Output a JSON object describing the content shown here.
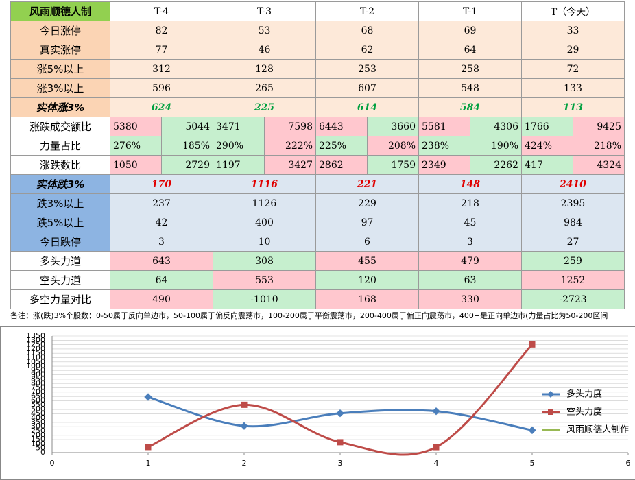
{
  "table": {
    "header": [
      "风雨顺德人制",
      "T-4",
      "T-3",
      "T-2",
      "T-1",
      "T（今天）"
    ],
    "rows": [
      {
        "label": "今日涨停",
        "label_fill": "#fbd4b4",
        "fill": "#fde9d9",
        "cells": [
          82,
          53,
          68,
          69,
          33
        ]
      },
      {
        "label": "真实涨停",
        "label_fill": "#fbd4b4",
        "fill": "#fde9d9",
        "cells": [
          77,
          46,
          62,
          64,
          29
        ]
      },
      {
        "label": "涨5%以上",
        "label_fill": "#fbd4b4",
        "fill": "#fde9d9",
        "cells": [
          312,
          128,
          253,
          258,
          72
        ]
      },
      {
        "label": "涨3%以上",
        "label_fill": "#fbd4b4",
        "fill": "#fde9d9",
        "cells": [
          596,
          265,
          607,
          548,
          133
        ]
      },
      {
        "label": "实体涨3%",
        "label_fill": "#fbd4b4",
        "fill": "#fde9d9",
        "emphasis": "#00a040",
        "cells": [
          624,
          225,
          614,
          584,
          113
        ]
      },
      {
        "label": "涨跌成交额比",
        "label_fill": "#ffffff",
        "cells": [
          5380,
          5044,
          3471,
          7598,
          6443,
          3660,
          5581,
          4306,
          1766,
          9425
        ],
        "fills": [
          "#ffc7ce",
          "#c6efce",
          "#c6efce",
          "#ffc7ce",
          "#ffc7ce",
          "#c6efce",
          "#ffc7ce",
          "#c6efce",
          "#c6efce",
          "#ffc7ce"
        ]
      },
      {
        "label": "力量占比",
        "label_fill": "#ffffff",
        "cells": [
          "276%",
          "185%",
          "290%",
          "222%",
          "225%",
          "208%",
          "238%",
          "190%",
          "424%",
          "218%"
        ],
        "fills": [
          "#c6efce",
          "#c6efce",
          "#c6efce",
          "#ffc7ce",
          "#c6efce",
          "#ffc7ce",
          "#c6efce",
          "#c6efce",
          "#ffc7ce",
          "#ffc7ce"
        ]
      },
      {
        "label": "涨跌数比",
        "label_fill": "#ffffff",
        "cells": [
          1050,
          2729,
          1197,
          3427,
          2862,
          1759,
          2349,
          2262,
          417,
          4324
        ],
        "fills": [
          "#ffc7ce",
          "#c6efce",
          "#c6efce",
          "#ffc7ce",
          "#ffc7ce",
          "#c6efce",
          "#ffc7ce",
          "#c6efce",
          "#c6efce",
          "#ffc7ce"
        ]
      },
      {
        "label": "实体跌3%",
        "label_fill": "#8db4e2",
        "fill": "#dce6f1",
        "emphasis": "#e00000",
        "cells": [
          170,
          1116,
          221,
          148,
          2410
        ]
      },
      {
        "label": "跌3%以上",
        "label_fill": "#8db4e2",
        "fill": "#dce6f1",
        "cells": [
          237,
          1126,
          229,
          218,
          2395
        ]
      },
      {
        "label": "跌5%以上",
        "label_fill": "#8db4e2",
        "fill": "#dce6f1",
        "cells": [
          42,
          400,
          97,
          45,
          984
        ]
      },
      {
        "label": "今日跌停",
        "label_fill": "#8db4e2",
        "fill": "#dce6f1",
        "cells": [
          3,
          10,
          6,
          3,
          27
        ]
      },
      {
        "label": "多头力道",
        "label_fill": "#ffffff",
        "cells": [
          643,
          308,
          455,
          479,
          259
        ],
        "fills": [
          "#ffc7ce",
          "#c6efce",
          "#ffc7ce",
          "#ffc7ce",
          "#c6efce"
        ]
      },
      {
        "label": "空头力道",
        "label_fill": "#ffffff",
        "cells": [
          64,
          553,
          120,
          63,
          1252
        ],
        "fills": [
          "#c6efce",
          "#ffc7ce",
          "#c6efce",
          "#c6efce",
          "#ffc7ce"
        ]
      },
      {
        "label": "多空力量对比",
        "label_fill": "#ffffff",
        "cells": [
          490,
          -1010,
          168,
          330,
          -2723
        ],
        "fills": [
          "#ffc7ce",
          "#c6efce",
          "#ffc7ce",
          "#ffc7ce",
          "#c6efce"
        ]
      }
    ]
  },
  "note": "备注：涨(跌)3%个股数：0-50属于反向单边市，50-100属于偏反向震荡市，100-200属于平衡震荡市，200-400属于偏正向震荡市，400+是正向单边市(力量占比为50-200区间",
  "chart_data": {
    "type": "line",
    "x": [
      1,
      2,
      3,
      4,
      5
    ],
    "series": [
      {
        "name": "多头力度",
        "color": "#4a7ebb",
        "marker": "diamond",
        "values": [
          643,
          308,
          455,
          479,
          259
        ]
      },
      {
        "name": "空头力度",
        "color": "#be4b48",
        "marker": "square",
        "values": [
          64,
          553,
          120,
          63,
          1252
        ]
      },
      {
        "name": "风雨顺德人制作",
        "color": "#98b954",
        "marker": "none",
        "values": [
          null,
          null,
          null,
          null,
          null
        ]
      }
    ],
    "xlim": [
      0,
      6
    ],
    "xticks": [
      0,
      1,
      2,
      3,
      4,
      5,
      6
    ],
    "ylim": [
      0,
      1350
    ],
    "yticks": [
      0,
      50,
      100,
      150,
      200,
      250,
      300,
      350,
      400,
      450,
      500,
      550,
      600,
      650,
      700,
      750,
      800,
      850,
      900,
      950,
      1000,
      1050,
      1100,
      1150,
      1200,
      1250,
      1300,
      1350
    ],
    "grid": true,
    "smooth": true,
    "legend": "right"
  }
}
